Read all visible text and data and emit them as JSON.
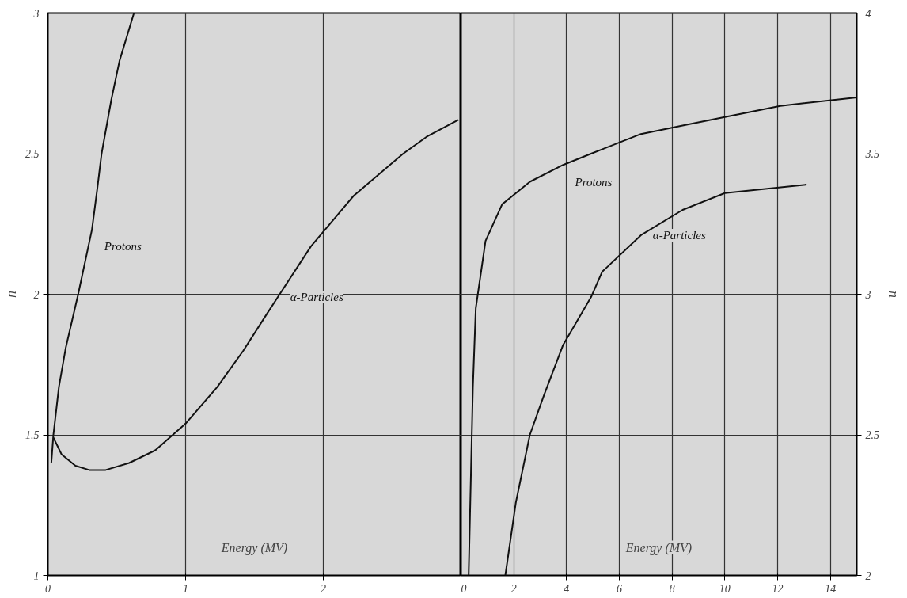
{
  "chart_data": [
    {
      "type": "line",
      "xlabel": "Energy (MV)",
      "ylabel": "n",
      "xlim": [
        0,
        3
      ],
      "ylim": [
        1,
        3
      ],
      "xticks": [
        0,
        1,
        2
      ],
      "yticks": [
        1,
        1.5,
        2,
        2.5,
        3
      ],
      "grid": true,
      "legend": false,
      "marker": "none",
      "line_style": "solid",
      "series": [
        {
          "name": "Protons",
          "color": "#111111",
          "x": [
            0.025,
            0.04,
            0.08,
            0.13,
            0.22,
            0.32,
            0.36,
            0.39,
            0.46,
            0.52,
            0.625
          ],
          "values": [
            1.4,
            1.5,
            1.67,
            1.81,
            2.0,
            2.23,
            2.38,
            2.5,
            2.69,
            2.83,
            3.0
          ]
        },
        {
          "name": "α-Particles",
          "color": "#111111",
          "x": [
            0.04,
            0.1,
            0.2,
            0.3,
            0.42,
            0.59,
            0.78,
            1.0,
            1.23,
            1.42,
            1.59,
            1.67,
            1.91,
            2.22,
            2.58,
            2.75,
            2.98
          ],
          "values": [
            1.49,
            1.43,
            1.39,
            1.375,
            1.375,
            1.4,
            1.445,
            1.54,
            1.67,
            1.8,
            1.93,
            1.99,
            2.17,
            2.35,
            2.5,
            2.56,
            2.62
          ]
        }
      ]
    },
    {
      "type": "line",
      "xlabel": "Energy (MV)",
      "ylabel": "n",
      "xlim": [
        0,
        15
      ],
      "ylim": [
        2,
        4
      ],
      "xticks": [
        0,
        2,
        4,
        6,
        8,
        10,
        12,
        14
      ],
      "yticks": [
        2,
        2.5,
        3,
        3.5,
        4
      ],
      "grid": true,
      "legend": false,
      "marker": "none",
      "line_style": "solid",
      "series": [
        {
          "name": "Protons",
          "color": "#111111",
          "x": [
            0.29,
            0.45,
            0.56,
            0.93,
            1.56,
            2.61,
            3.87,
            4.93,
            6.82,
            8.4,
            10.0,
            12.1,
            15.0
          ],
          "values": [
            2.0,
            2.67,
            2.95,
            3.19,
            3.32,
            3.4,
            3.46,
            3.5,
            3.57,
            3.6,
            3.63,
            3.67,
            3.7
          ]
        },
        {
          "name": "α-Particles",
          "color": "#111111",
          "x": [
            1.68,
            2.08,
            2.61,
            3.14,
            3.87,
            4.93,
            5.35,
            6.82,
            8.4,
            10.0,
            13.1
          ],
          "values": [
            2.0,
            2.26,
            2.5,
            2.64,
            2.82,
            2.99,
            3.08,
            3.21,
            3.3,
            3.36,
            3.39
          ]
        }
      ]
    }
  ]
}
